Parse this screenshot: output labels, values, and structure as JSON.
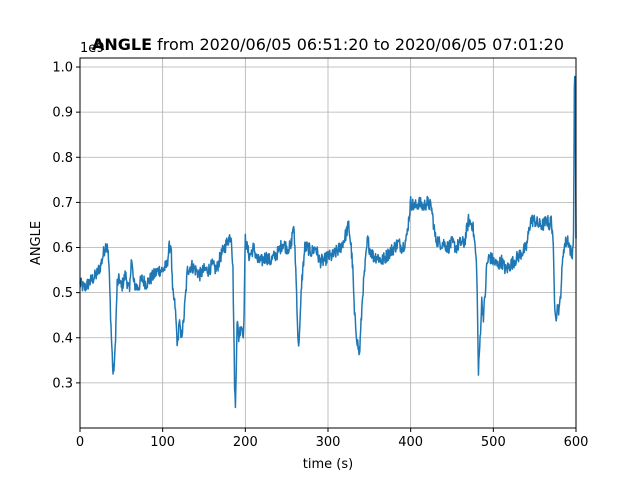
{
  "chart_data": {
    "type": "line",
    "title_bold": "ANGLE",
    "title_rest": " from 2020/06/05 06:51:20 to 2020/06/05 07:01:20",
    "xlabel": "time (s)",
    "ylabel": "ANGLE",
    "y_offset_label": "1e9",
    "xlim": [
      0,
      600
    ],
    "ylim": [
      0.2,
      1.02
    ],
    "x_ticks": [
      0,
      100,
      200,
      300,
      400,
      500,
      600
    ],
    "y_ticks": [
      0.3,
      0.4,
      0.5,
      0.6,
      0.7,
      0.8,
      0.9,
      1.0
    ],
    "grid": true,
    "line_color": "#1f77b4",
    "series": [
      {
        "x": [
          0,
          5,
          10,
          15,
          20,
          25,
          30,
          33,
          35,
          38,
          40,
          42,
          45,
          48,
          50,
          55,
          60,
          62,
          65,
          70,
          75,
          80,
          85,
          90,
          95,
          100,
          105,
          108,
          110,
          112,
          115,
          118,
          120,
          122,
          125,
          128,
          130,
          135,
          140,
          145,
          150,
          155,
          160,
          165,
          170,
          175,
          180,
          183,
          185,
          187,
          188,
          190,
          192,
          195,
          198,
          200,
          202,
          205,
          210,
          215,
          220,
          225,
          230,
          235,
          240,
          245,
          250,
          255,
          258,
          260,
          262,
          264,
          266,
          268,
          270,
          272,
          275,
          280,
          285,
          290,
          295,
          300,
          305,
          310,
          315,
          320,
          325,
          328,
          330,
          332,
          335,
          338,
          340,
          342,
          345,
          348,
          350,
          355,
          360,
          365,
          370,
          375,
          380,
          385,
          390,
          395,
          400,
          405,
          410,
          415,
          420,
          425,
          430,
          435,
          440,
          445,
          450,
          455,
          460,
          465,
          470,
          475,
          478,
          480,
          482,
          484,
          486,
          488,
          490,
          492,
          495,
          500,
          505,
          510,
          515,
          520,
          525,
          530,
          535,
          540,
          545,
          550,
          555,
          560,
          565,
          568,
          570,
          572,
          574,
          576,
          578,
          580,
          585,
          590,
          595,
          597,
          598,
          599,
          600
        ],
        "y": [
          0.52,
          0.51,
          0.52,
          0.53,
          0.54,
          0.56,
          0.6,
          0.61,
          0.56,
          0.4,
          0.32,
          0.35,
          0.52,
          0.53,
          0.51,
          0.54,
          0.5,
          0.58,
          0.52,
          0.51,
          0.53,
          0.52,
          0.53,
          0.54,
          0.55,
          0.55,
          0.56,
          0.6,
          0.61,
          0.5,
          0.47,
          0.38,
          0.44,
          0.4,
          0.43,
          0.5,
          0.55,
          0.56,
          0.55,
          0.54,
          0.55,
          0.55,
          0.56,
          0.55,
          0.58,
          0.6,
          0.62,
          0.63,
          0.55,
          0.3,
          0.24,
          0.44,
          0.4,
          0.43,
          0.41,
          0.62,
          0.6,
          0.58,
          0.6,
          0.57,
          0.57,
          0.58,
          0.57,
          0.58,
          0.59,
          0.61,
          0.6,
          0.6,
          0.65,
          0.6,
          0.5,
          0.38,
          0.42,
          0.52,
          0.56,
          0.6,
          0.6,
          0.59,
          0.6,
          0.57,
          0.57,
          0.58,
          0.58,
          0.59,
          0.6,
          0.62,
          0.65,
          0.6,
          0.55,
          0.45,
          0.4,
          0.36,
          0.43,
          0.5,
          0.56,
          0.62,
          0.6,
          0.58,
          0.58,
          0.57,
          0.58,
          0.59,
          0.6,
          0.61,
          0.6,
          0.62,
          0.7,
          0.69,
          0.7,
          0.69,
          0.7,
          0.69,
          0.62,
          0.61,
          0.61,
          0.6,
          0.61,
          0.6,
          0.61,
          0.61,
          0.66,
          0.65,
          0.6,
          0.55,
          0.32,
          0.4,
          0.48,
          0.45,
          0.49,
          0.56,
          0.58,
          0.57,
          0.56,
          0.57,
          0.55,
          0.56,
          0.57,
          0.58,
          0.59,
          0.6,
          0.66,
          0.66,
          0.65,
          0.65,
          0.66,
          0.65,
          0.66,
          0.63,
          0.48,
          0.45,
          0.47,
          0.46,
          0.6,
          0.62,
          0.58,
          0.62,
          0.95,
          0.98,
          0.62
        ]
      }
    ]
  }
}
